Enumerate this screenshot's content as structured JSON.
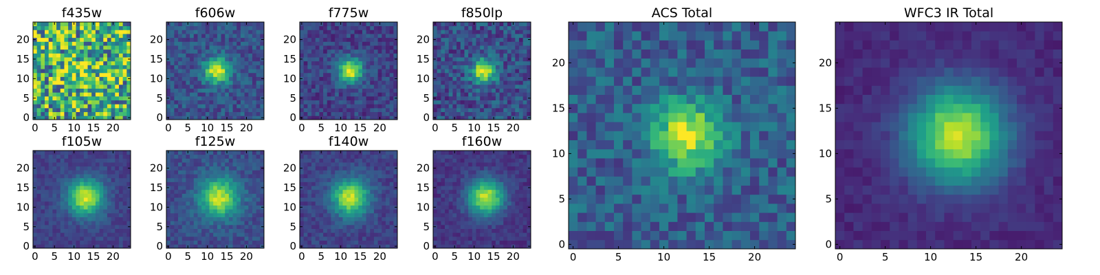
{
  "chart_data": [
    {
      "type": "heatmap",
      "title": "f435w",
      "colormap": "viridis",
      "xlim": [
        -0.5,
        24.5
      ],
      "ylim": [
        -0.5,
        24.5
      ],
      "xticks": [
        0,
        5,
        10,
        15,
        20
      ],
      "yticks": [
        0,
        5,
        10,
        15,
        20
      ],
      "source": {
        "center": [
          12,
          12
        ],
        "sigma": 4.0,
        "peak": 0.15,
        "noise": 0.42,
        "background": 0.62,
        "seed": 11
      }
    },
    {
      "type": "heatmap",
      "title": "f606w",
      "colormap": "viridis",
      "xlim": [
        -0.5,
        24.5
      ],
      "ylim": [
        -0.5,
        24.5
      ],
      "xticks": [
        0,
        5,
        10,
        15,
        20
      ],
      "yticks": [
        0,
        5,
        10,
        15,
        20
      ],
      "source": {
        "center": [
          12.5,
          12
        ],
        "sigma": 2.3,
        "peak": 0.72,
        "noise": 0.13,
        "background": 0.26,
        "seed": 23
      }
    },
    {
      "type": "heatmap",
      "title": "f775w",
      "colormap": "viridis",
      "xlim": [
        -0.5,
        24.5
      ],
      "ylim": [
        -0.5,
        24.5
      ],
      "xticks": [
        0,
        5,
        10,
        15,
        20
      ],
      "yticks": [
        0,
        5,
        10,
        15,
        20
      ],
      "source": {
        "center": [
          12.5,
          12
        ],
        "sigma": 2.2,
        "peak": 0.76,
        "noise": 0.12,
        "background": 0.2,
        "seed": 37
      }
    },
    {
      "type": "heatmap",
      "title": "f850lp",
      "colormap": "viridis",
      "xlim": [
        -0.5,
        24.5
      ],
      "ylim": [
        -0.5,
        24.5
      ],
      "xticks": [
        0,
        5,
        10,
        15,
        20
      ],
      "yticks": [
        0,
        5,
        10,
        15,
        20
      ],
      "source": {
        "center": [
          12.5,
          12
        ],
        "sigma": 2.2,
        "peak": 0.7,
        "noise": 0.16,
        "background": 0.24,
        "seed": 41
      }
    },
    {
      "type": "heatmap",
      "title": "f105w",
      "colormap": "viridis",
      "xlim": [
        -0.5,
        24.5
      ],
      "ylim": [
        -0.5,
        24.5
      ],
      "xticks": [
        0,
        5,
        10,
        15,
        20
      ],
      "yticks": [
        0,
        5,
        10,
        15,
        20
      ],
      "source": {
        "center": [
          13,
          12.5
        ],
        "sigma": 3.2,
        "peak": 0.74,
        "noise": 0.07,
        "background": 0.2,
        "seed": 53
      }
    },
    {
      "type": "heatmap",
      "title": "f125w",
      "colormap": "viridis",
      "xlim": [
        -0.5,
        24.5
      ],
      "ylim": [
        -0.5,
        24.5
      ],
      "xticks": [
        0,
        5,
        10,
        15,
        20
      ],
      "yticks": [
        0,
        5,
        10,
        15,
        20
      ],
      "source": {
        "center": [
          13,
          12.5
        ],
        "sigma": 3.5,
        "peak": 0.68,
        "noise": 0.09,
        "background": 0.24,
        "seed": 67
      }
    },
    {
      "type": "heatmap",
      "title": "f140w",
      "colormap": "viridis",
      "xlim": [
        -0.5,
        24.5
      ],
      "ylim": [
        -0.5,
        24.5
      ],
      "xticks": [
        0,
        5,
        10,
        15,
        20
      ],
      "yticks": [
        0,
        5,
        10,
        15,
        20
      ],
      "source": {
        "center": [
          12.5,
          12.5
        ],
        "sigma": 3.3,
        "peak": 0.72,
        "noise": 0.08,
        "background": 0.2,
        "seed": 71
      }
    },
    {
      "type": "heatmap",
      "title": "f160w",
      "colormap": "viridis",
      "xlim": [
        -0.5,
        24.5
      ],
      "ylim": [
        -0.5,
        24.5
      ],
      "xticks": [
        0,
        5,
        10,
        15,
        20
      ],
      "yticks": [
        0,
        5,
        10,
        15,
        20
      ],
      "source": {
        "center": [
          13,
          12.5
        ],
        "sigma": 3.2,
        "peak": 0.76,
        "noise": 0.07,
        "background": 0.16,
        "seed": 83
      }
    },
    {
      "type": "heatmap",
      "title": "ACS Total",
      "colormap": "viridis",
      "xlim": [
        -0.5,
        24.5
      ],
      "ylim": [
        -0.5,
        24.5
      ],
      "xticks": [
        0,
        5,
        10,
        15,
        20
      ],
      "yticks": [
        0,
        5,
        10,
        15,
        20
      ],
      "source": {
        "center": [
          12.5,
          12
        ],
        "sigma": 2.6,
        "peak": 0.66,
        "noise": 0.15,
        "background": 0.3,
        "seed": 97
      }
    },
    {
      "type": "heatmap",
      "title": "WFC3 IR Total",
      "colormap": "viridis",
      "xlim": [
        -0.5,
        24.5
      ],
      "ylim": [
        -0.5,
        24.5
      ],
      "xticks": [
        0,
        5,
        10,
        15,
        20
      ],
      "yticks": [
        0,
        5,
        10,
        15,
        20
      ],
      "source": {
        "center": [
          13,
          12
        ],
        "sigma": 3.7,
        "peak": 0.8,
        "noise": 0.05,
        "background": 0.12,
        "seed": 101
      }
    }
  ],
  "colors": {
    "viridis": [
      "#440154",
      "#482878",
      "#3e4989",
      "#31688e",
      "#26828e",
      "#1f9e89",
      "#35b779",
      "#6ece58",
      "#b5de2b",
      "#fde725"
    ],
    "axis": "#000000",
    "background": "#ffffff"
  }
}
